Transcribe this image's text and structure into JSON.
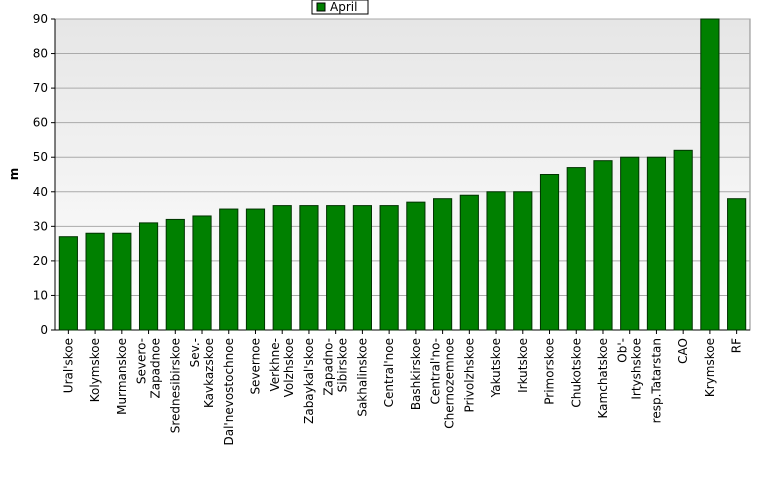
{
  "chart_data": {
    "type": "bar",
    "y_label": "m",
    "legend": "top",
    "grid": true,
    "categories": [
      [
        "Ural'skoe"
      ],
      [
        "Kolymskoe"
      ],
      [
        "Murmanskoe"
      ],
      [
        "Severo-",
        "Zapadnoe"
      ],
      [
        "Srednesibirskoe"
      ],
      [
        "Sev.-",
        "Kavkazskoe"
      ],
      [
        "Dal'nevostochnoe"
      ],
      [
        "Severnoe"
      ],
      [
        "Verkhne-",
        "Volzhskoe"
      ],
      [
        "Zabaykal'skoe"
      ],
      [
        "Zapadno-",
        "Sibirskoe"
      ],
      [
        "Sakhalinskoe"
      ],
      [
        "Central'noe"
      ],
      [
        "Bashkirskoe"
      ],
      [
        "Central'no-",
        "Chernozemnoe"
      ],
      [
        "Privolzhskoe"
      ],
      [
        "Yakutskoe"
      ],
      [
        "Irkutskoe"
      ],
      [
        "Primorskoe"
      ],
      [
        "Chukotskoe"
      ],
      [
        "Kamchatskoe"
      ],
      [
        "Ob'-",
        "Irtyshskoe"
      ],
      [
        "resp.Tatarstan"
      ],
      [
        "CAO"
      ],
      [
        "Krymskoe"
      ],
      [
        "RF"
      ]
    ],
    "series": [
      {
        "name": "April",
        "color": "#008000",
        "values": [
          27,
          28,
          28,
          31,
          32,
          33,
          35,
          35,
          36,
          36,
          36,
          36,
          36,
          37,
          38,
          39,
          40,
          40,
          45,
          47,
          49,
          50,
          50,
          52,
          90,
          38
        ]
      }
    ],
    "ylim": [
      0,
      90
    ],
    "yticks": [
      0,
      10,
      20,
      30,
      40,
      50,
      60,
      70,
      80,
      90
    ]
  }
}
